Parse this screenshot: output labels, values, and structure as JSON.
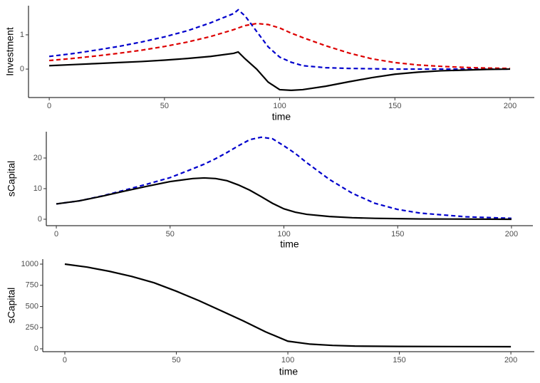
{
  "chart_data": [
    {
      "type": "line",
      "xlabel": "time",
      "ylabel": "Investment",
      "x": [
        0,
        10,
        20,
        30,
        40,
        50,
        60,
        70,
        80,
        82,
        85,
        90,
        95,
        100,
        105,
        110,
        120,
        130,
        140,
        150,
        160,
        170,
        180,
        190,
        200
      ],
      "series": [
        {
          "color": "#0000cc",
          "linestyle": "dashed",
          "values": [
            0.37,
            0.45,
            0.55,
            0.66,
            0.79,
            0.94,
            1.12,
            1.35,
            1.62,
            1.73,
            1.55,
            1.1,
            0.65,
            0.35,
            0.2,
            0.1,
            0.04,
            0.02,
            0.01,
            0,
            0,
            0,
            0,
            0,
            0
          ]
        },
        {
          "color": "#dd0000",
          "linestyle": "dashed",
          "values": [
            0.25,
            0.31,
            0.38,
            0.46,
            0.55,
            0.66,
            0.79,
            0.95,
            1.15,
            1.2,
            1.27,
            1.33,
            1.3,
            1.2,
            1.05,
            0.92,
            0.68,
            0.47,
            0.3,
            0.19,
            0.12,
            0.08,
            0.05,
            0.03,
            0.02
          ]
        },
        {
          "color": "#000000",
          "linestyle": "solid",
          "values": [
            0.1,
            0.13,
            0.16,
            0.19,
            0.22,
            0.26,
            0.31,
            0.37,
            0.46,
            0.5,
            0.3,
            0.0,
            -0.38,
            -0.6,
            -0.62,
            -0.6,
            -0.5,
            -0.37,
            -0.25,
            -0.15,
            -0.09,
            -0.05,
            -0.03,
            -0.01,
            0
          ]
        }
      ],
      "xlim": [
        -9,
        210.5
      ],
      "xticks": [
        0,
        50,
        100,
        150,
        200
      ],
      "ylim": [
        -0.83,
        1.85
      ],
      "yticks": [
        0,
        1
      ]
    },
    {
      "type": "line",
      "xlabel": "time",
      "ylabel": "sCapital",
      "x": [
        0,
        10,
        20,
        30,
        40,
        50,
        60,
        65,
        70,
        75,
        80,
        85,
        90,
        95,
        100,
        105,
        110,
        120,
        130,
        140,
        150,
        160,
        180,
        200
      ],
      "series": [
        {
          "color": "#0000cc",
          "linestyle": "dashed",
          "values": [
            5,
            6,
            7.6,
            9.5,
            11.5,
            13.6,
            16.5,
            18,
            19.8,
            21.8,
            24,
            26,
            26.8,
            26.3,
            24,
            21.5,
            18.5,
            13,
            8.5,
            5.2,
            3.2,
            2,
            0.8,
            0.3
          ]
        },
        {
          "color": "#000000",
          "linestyle": "solid",
          "values": [
            5,
            6,
            7.5,
            9.2,
            10.8,
            12.3,
            13.3,
            13.5,
            13.3,
            12.6,
            11.2,
            9.5,
            7.4,
            5.2,
            3.4,
            2.3,
            1.6,
            0.9,
            0.5,
            0.3,
            0.2,
            0.1,
            0.05,
            0
          ]
        }
      ],
      "xlim": [
        -4.4,
        209.4
      ],
      "xticks": [
        0,
        50,
        100,
        150,
        200
      ],
      "ylim": [
        -2.1,
        28.6
      ],
      "yticks": [
        0,
        10,
        20
      ]
    },
    {
      "type": "line",
      "xlabel": "time",
      "ylabel": "sCapital",
      "x": [
        0,
        10,
        20,
        30,
        40,
        50,
        60,
        70,
        80,
        90,
        100,
        110,
        120,
        130,
        150,
        200
      ],
      "series": [
        {
          "color": "#000000",
          "linestyle": "solid",
          "values": [
            1000,
            965,
            915,
            855,
            780,
            680,
            570,
            450,
            330,
            200,
            90,
            55,
            40,
            32,
            28,
            25
          ]
        }
      ],
      "xlim": [
        -9.9,
        210.5
      ],
      "xticks": [
        0,
        50,
        100,
        150,
        200
      ],
      "ylim": [
        -34,
        1059
      ],
      "yticks": [
        0,
        250,
        500,
        750,
        1000
      ]
    }
  ]
}
